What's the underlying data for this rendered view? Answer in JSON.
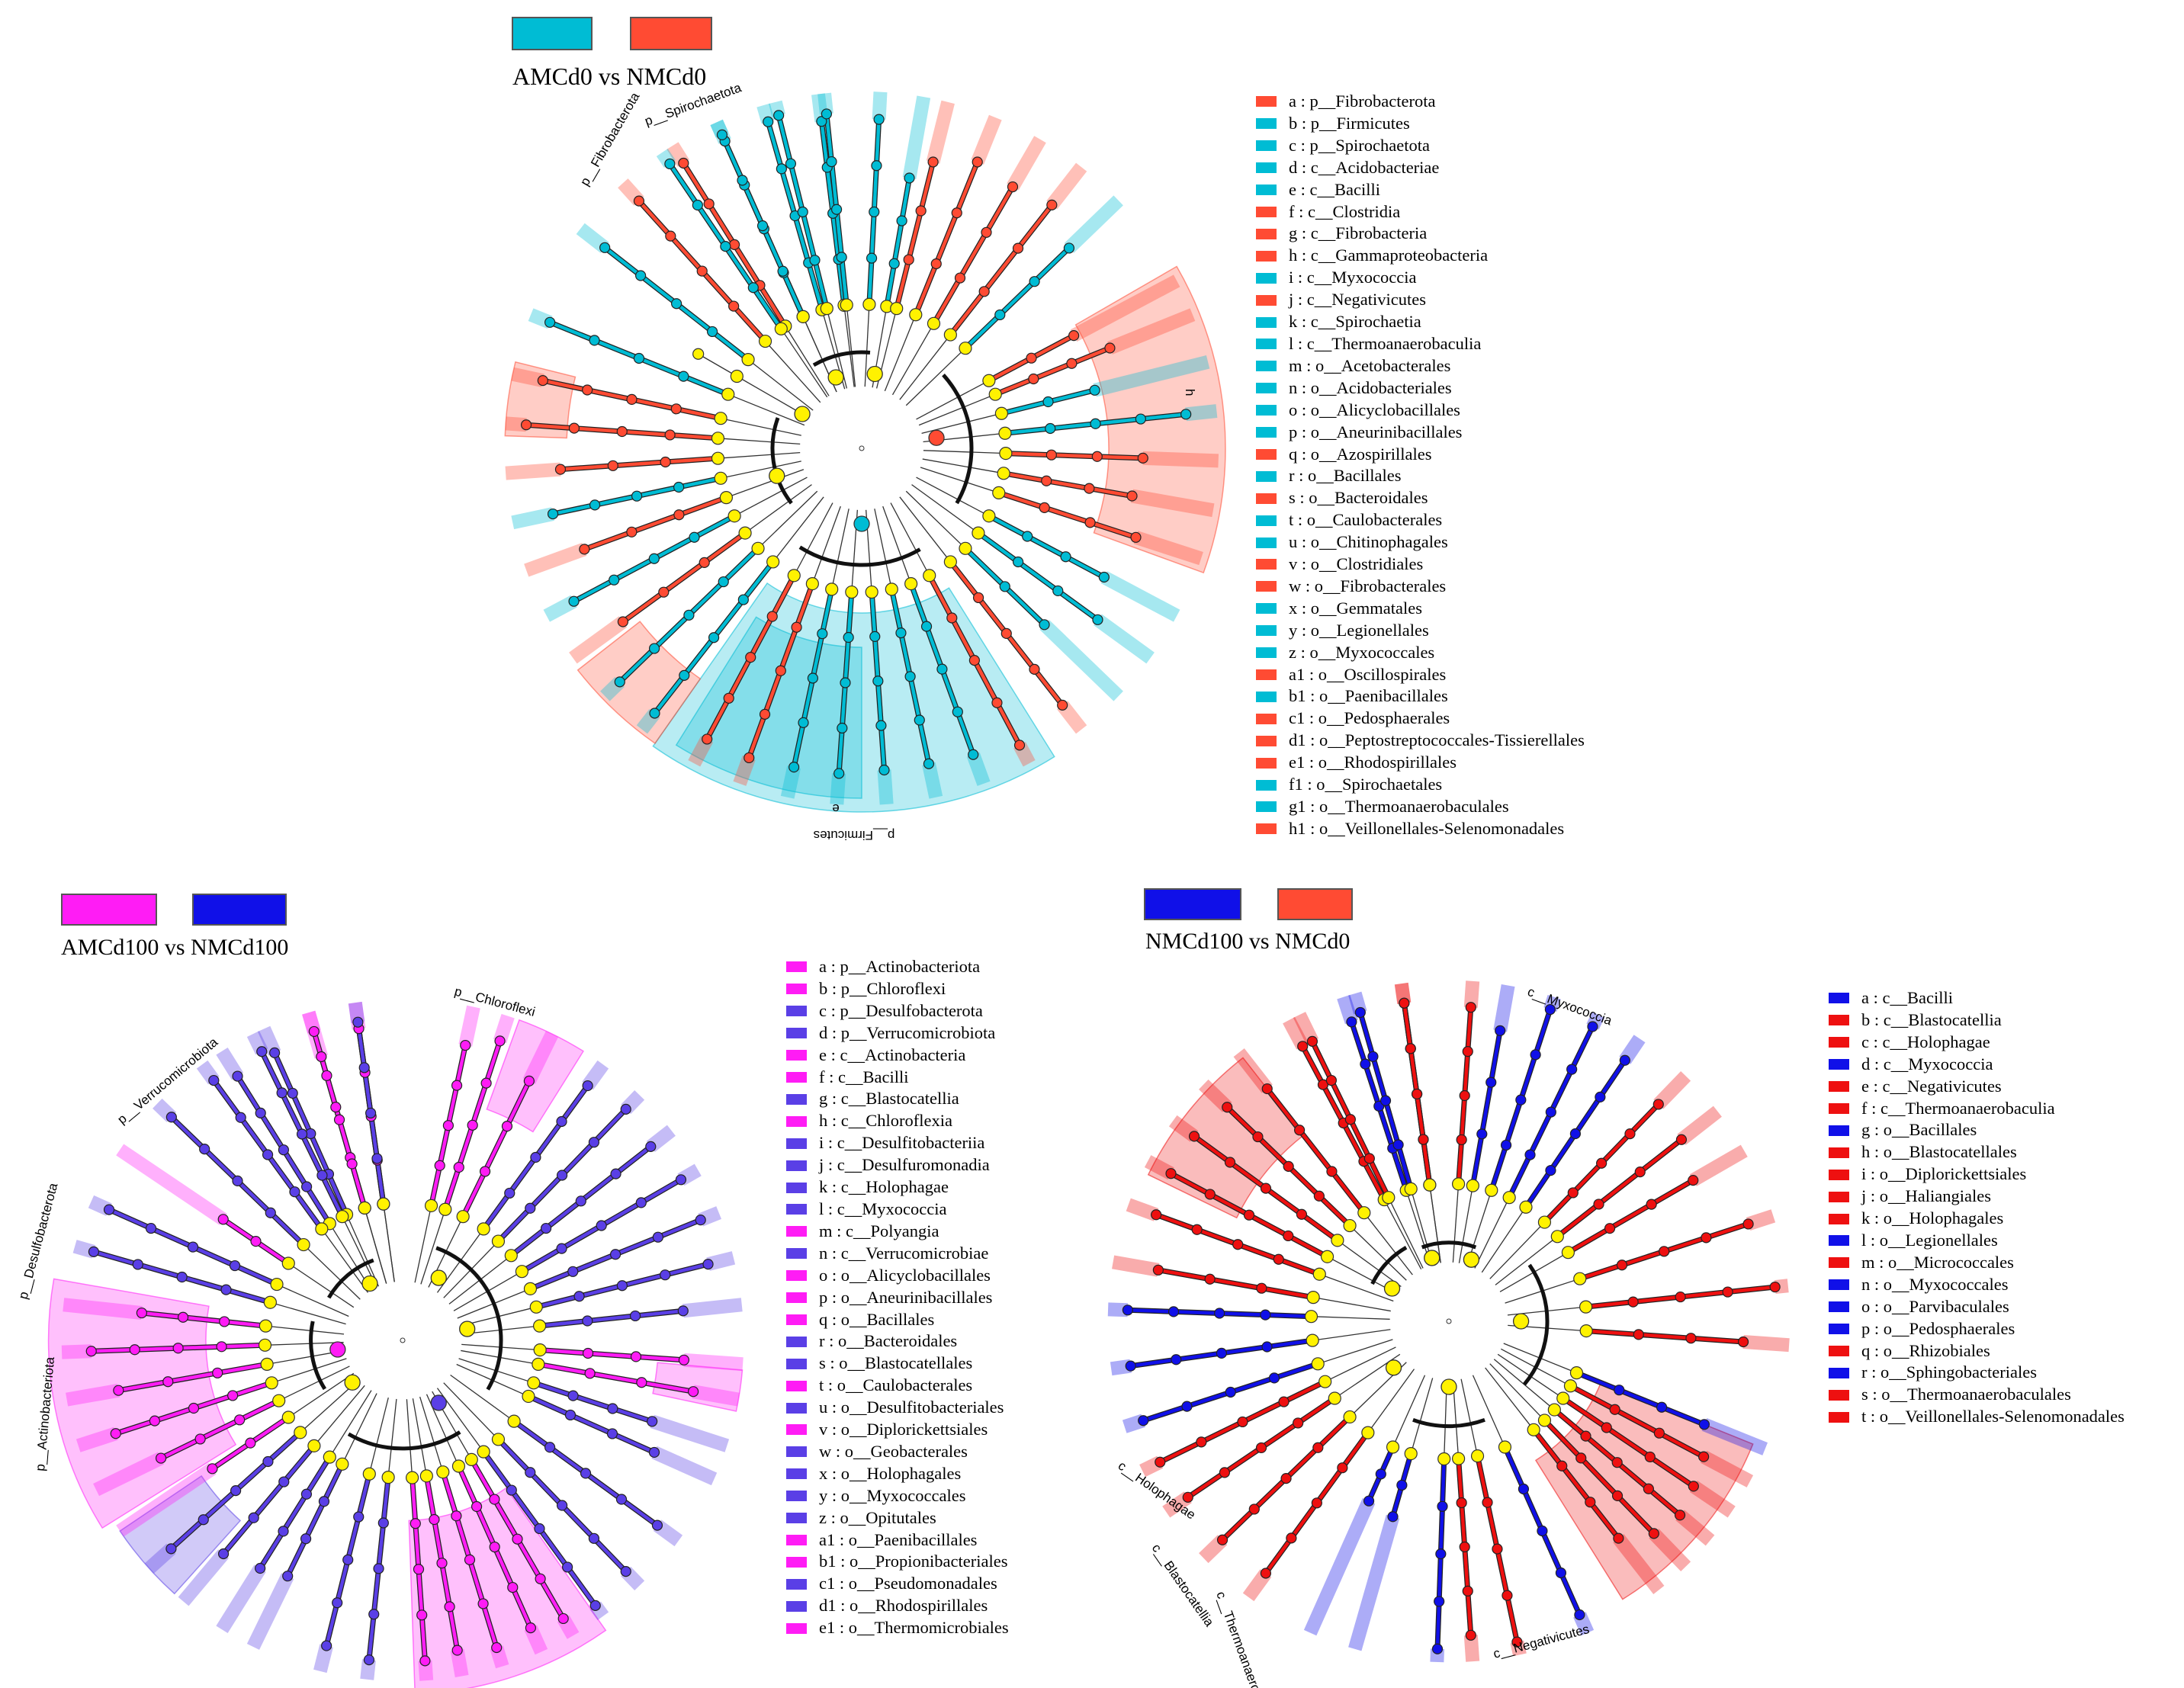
{
  "colors": {
    "cyan": "#00BCD4",
    "red_orange": "#FF4B33",
    "magenta": "#FF1CF5",
    "indigo": "#5A3FE6",
    "blue": "#1010E8",
    "red": "#EE1010",
    "node_yellow": "#FFF200"
  },
  "panel1": {
    "groups": [
      {
        "name": "AMCd0",
        "color": "#00BCD4"
      },
      {
        "name": "NMCd0",
        "color": "#FF4B33"
      }
    ],
    "title": "AMCd0 vs NMCd0",
    "labels": {
      "fibrobacterota": "p__Fibrobacterota",
      "spirochaetota": "p__Spirochaetota",
      "firmicutes": "p__Firmicutes",
      "e": "e",
      "h": "h"
    },
    "legend": [
      {
        "text": "a : p__Fibrobacterota",
        "color": "#FF4B33"
      },
      {
        "text": "b : p__Firmicutes",
        "color": "#00BCD4"
      },
      {
        "text": "c : p__Spirochaetota",
        "color": "#00BCD4"
      },
      {
        "text": "d : c__Acidobacteriae",
        "color": "#00BCD4"
      },
      {
        "text": "e : c__Bacilli",
        "color": "#00BCD4"
      },
      {
        "text": "f : c__Clostridia",
        "color": "#FF4B33"
      },
      {
        "text": "g : c__Fibrobacteria",
        "color": "#FF4B33"
      },
      {
        "text": "h : c__Gammaproteobacteria",
        "color": "#FF4B33"
      },
      {
        "text": "i : c__Myxococcia",
        "color": "#00BCD4"
      },
      {
        "text": "j : c__Negativicutes",
        "color": "#FF4B33"
      },
      {
        "text": "k : c__Spirochaetia",
        "color": "#00BCD4"
      },
      {
        "text": "l : c__Thermoanaerobaculia",
        "color": "#00BCD4"
      },
      {
        "text": "m : o__Acetobacterales",
        "color": "#00BCD4"
      },
      {
        "text": "n : o__Acidobacteriales",
        "color": "#00BCD4"
      },
      {
        "text": "o : o__Alicyclobacillales",
        "color": "#00BCD4"
      },
      {
        "text": "p : o__Aneurinibacillales",
        "color": "#00BCD4"
      },
      {
        "text": "q : o__Azospirillales",
        "color": "#FF4B33"
      },
      {
        "text": "r : o__Bacillales",
        "color": "#00BCD4"
      },
      {
        "text": "s : o__Bacteroidales",
        "color": "#FF4B33"
      },
      {
        "text": "t : o__Caulobacterales",
        "color": "#00BCD4"
      },
      {
        "text": "u : o__Chitinophagales",
        "color": "#00BCD4"
      },
      {
        "text": "v : o__Clostridiales",
        "color": "#FF4B33"
      },
      {
        "text": "w : o__Fibrobacterales",
        "color": "#FF4B33"
      },
      {
        "text": "x : o__Gemmatales",
        "color": "#00BCD4"
      },
      {
        "text": "y : o__Legionellales",
        "color": "#00BCD4"
      },
      {
        "text": "z : o__Myxococcales",
        "color": "#00BCD4"
      },
      {
        "text": "a1 : o__Oscillospirales",
        "color": "#FF4B33"
      },
      {
        "text": "b1 : o__Paenibacillales",
        "color": "#00BCD4"
      },
      {
        "text": "c1 : o__Pedosphaerales",
        "color": "#FF4B33"
      },
      {
        "text": "d1 : o__Peptostreptococcales-Tissierellales",
        "color": "#FF4B33"
      },
      {
        "text": "e1 : o__Rhodospirillales",
        "color": "#FF4B33"
      },
      {
        "text": "f1 : o__Spirochaetales",
        "color": "#00BCD4"
      },
      {
        "text": "g1 : o__Thermoanaerobaculales",
        "color": "#00BCD4"
      },
      {
        "text": "h1 : o__Veillonellales-Selenomonadales",
        "color": "#FF4B33"
      }
    ]
  },
  "panel2": {
    "groups": [
      {
        "name": "AMCd100",
        "color": "#FF1CF5"
      },
      {
        "name": "NMCd100",
        "color": "#1010E8"
      }
    ],
    "title": "AMCd100 vs NMCd100",
    "labels": {
      "chloroflexi": "p__Chloroflexi",
      "verrucomicrobiota": "p__Verrucomicrobiota",
      "desulfobacterota": "p__Desulfobacterota",
      "actinobacteriota": "p__Actinobacteriota"
    },
    "legend": [
      {
        "text": "a : p__Actinobacteriota",
        "color": "#FF1CF5"
      },
      {
        "text": "b : p__Chloroflexi",
        "color": "#FF1CF5"
      },
      {
        "text": "c : p__Desulfobacterota",
        "color": "#5A3FE6"
      },
      {
        "text": "d : p__Verrucomicrobiota",
        "color": "#5A3FE6"
      },
      {
        "text": "e : c__Actinobacteria",
        "color": "#FF1CF5"
      },
      {
        "text": "f : c__Bacilli",
        "color": "#FF1CF5"
      },
      {
        "text": "g : c__Blastocatellia",
        "color": "#5A3FE6"
      },
      {
        "text": "h : c__Chloroflexia",
        "color": "#FF1CF5"
      },
      {
        "text": "i : c__Desulfitobacteriia",
        "color": "#5A3FE6"
      },
      {
        "text": "j : c__Desulfuromonadia",
        "color": "#5A3FE6"
      },
      {
        "text": "k : c__Holophagae",
        "color": "#5A3FE6"
      },
      {
        "text": "l : c__Myxococcia",
        "color": "#5A3FE6"
      },
      {
        "text": "m : c__Polyangia",
        "color": "#FF1CF5"
      },
      {
        "text": "n : c__Verrucomicrobiae",
        "color": "#5A3FE6"
      },
      {
        "text": "o : o__Alicyclobacillales",
        "color": "#FF1CF5"
      },
      {
        "text": "p : o__Aneurinibacillales",
        "color": "#FF1CF5"
      },
      {
        "text": "q : o__Bacillales",
        "color": "#FF1CF5"
      },
      {
        "text": "r : o__Bacteroidales",
        "color": "#5A3FE6"
      },
      {
        "text": "s : o__Blastocatellales",
        "color": "#5A3FE6"
      },
      {
        "text": "t : o__Caulobacterales",
        "color": "#FF1CF5"
      },
      {
        "text": "u : o__Desulfitobacteriales",
        "color": "#5A3FE6"
      },
      {
        "text": "v : o__Diplorickettsiales",
        "color": "#FF1CF5"
      },
      {
        "text": "w : o__Geobacterales",
        "color": "#5A3FE6"
      },
      {
        "text": "x : o__Holophagales",
        "color": "#5A3FE6"
      },
      {
        "text": "y : o__Myxococcales",
        "color": "#5A3FE6"
      },
      {
        "text": "z : o__Opitutales",
        "color": "#5A3FE6"
      },
      {
        "text": "a1 : o__Paenibacillales",
        "color": "#FF1CF5"
      },
      {
        "text": "b1 : o__Propionibacteriales",
        "color": "#FF1CF5"
      },
      {
        "text": "c1 : o__Pseudomonadales",
        "color": "#5A3FE6"
      },
      {
        "text": "d1 : o__Rhodospirillales",
        "color": "#5A3FE6"
      },
      {
        "text": "e1 : o__Thermomicrobiales",
        "color": "#FF1CF5"
      }
    ]
  },
  "panel3": {
    "groups": [
      {
        "name": "NMCd100",
        "color": "#1010E8"
      },
      {
        "name": "NMCd0",
        "color": "#FF4B33"
      }
    ],
    "title": "NMCd100 vs NMCd0",
    "labels": {
      "myxococcia": "c__Myxococcia",
      "holophagae": "c__Holophagae",
      "blastocatellia": "c__Blastocatellia",
      "thermoanaerobaculia": "c__Thermoanaerobaculia",
      "negativicutes": "c__Negativicutes"
    },
    "legend": [
      {
        "text": "a : c__Bacilli",
        "color": "#1010E8"
      },
      {
        "text": "b : c__Blastocatellia",
        "color": "#EE1010"
      },
      {
        "text": "c : c__Holophagae",
        "color": "#EE1010"
      },
      {
        "text": "d : c__Myxococcia",
        "color": "#1010E8"
      },
      {
        "text": "e : c__Negativicutes",
        "color": "#EE1010"
      },
      {
        "text": "f : c__Thermoanaerobaculia",
        "color": "#EE1010"
      },
      {
        "text": "g : o__Bacillales",
        "color": "#1010E8"
      },
      {
        "text": "h : o__Blastocatellales",
        "color": "#EE1010"
      },
      {
        "text": "i : o__Diplorickettsiales",
        "color": "#EE1010"
      },
      {
        "text": "j : o__Haliangiales",
        "color": "#EE1010"
      },
      {
        "text": "k : o__Holophagales",
        "color": "#EE1010"
      },
      {
        "text": "l : o__Legionellales",
        "color": "#1010E8"
      },
      {
        "text": "m : o__Micrococcales",
        "color": "#EE1010"
      },
      {
        "text": "n : o__Myxococcales",
        "color": "#1010E8"
      },
      {
        "text": "o : o__Parvibaculales",
        "color": "#1010E8"
      },
      {
        "text": "p : o__Pedosphaerales",
        "color": "#1010E8"
      },
      {
        "text": "q : o__Rhizobiales",
        "color": "#EE1010"
      },
      {
        "text": "r : o__Sphingobacteriales",
        "color": "#1010E8"
      },
      {
        "text": "s : o__Thermoanaerobaculales",
        "color": "#EE1010"
      },
      {
        "text": "t : o__Veillonellales-Selenomonadales",
        "color": "#EE1010"
      }
    ]
  }
}
